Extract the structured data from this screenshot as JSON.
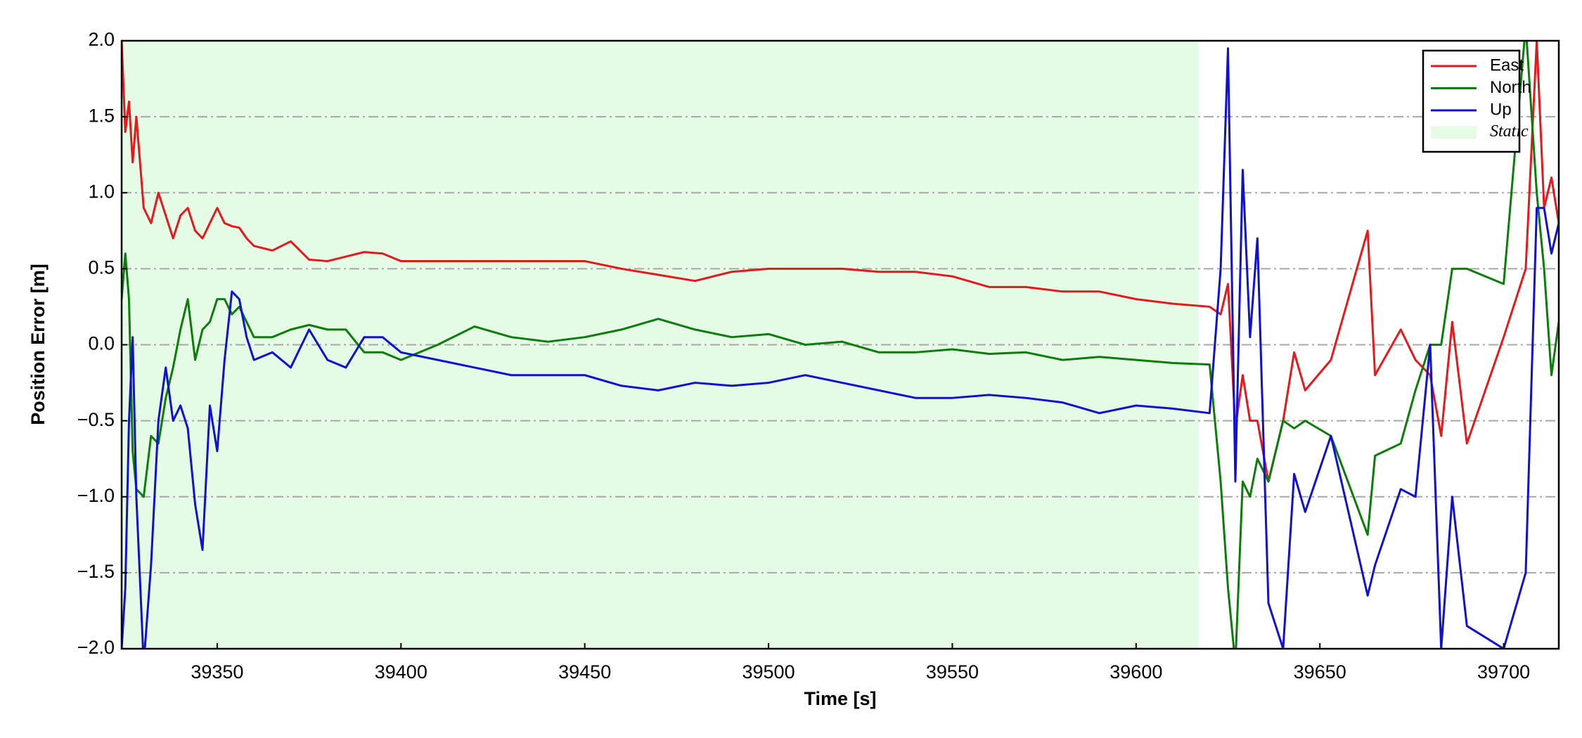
{
  "chart_data": {
    "type": "line",
    "xlabel": "Time [s]",
    "ylabel": "Position Error [m]",
    "x": [
      39324,
      39325,
      39326,
      39327,
      39328,
      39330,
      39332,
      39334,
      39336,
      39338,
      39340,
      39342,
      39344,
      39346,
      39348,
      39350,
      39352,
      39354,
      39356,
      39358,
      39360,
      39365,
      39370,
      39375,
      39380,
      39385,
      39390,
      39395,
      39400,
      39410,
      39420,
      39430,
      39440,
      39450,
      39460,
      39470,
      39480,
      39490,
      39500,
      39510,
      39520,
      39530,
      39540,
      39550,
      39560,
      39570,
      39580,
      39590,
      39600,
      39610,
      39620,
      39623,
      39625,
      39627,
      39629,
      39631,
      39633,
      39636,
      39640,
      39643,
      39646,
      39653,
      39663,
      39665,
      39672,
      39676,
      39680,
      39683,
      39686,
      39690,
      39700,
      39706,
      39709,
      39711,
      39713,
      39715
    ],
    "series": [
      {
        "name": "East",
        "color": "#e31a1c",
        "values": [
          2.0,
          1.4,
          1.6,
          1.2,
          1.5,
          0.9,
          0.8,
          1.0,
          0.85,
          0.7,
          0.85,
          0.9,
          0.75,
          0.7,
          0.8,
          0.9,
          0.8,
          0.78,
          0.77,
          0.7,
          0.65,
          0.62,
          0.68,
          0.56,
          0.55,
          0.58,
          0.61,
          0.6,
          0.55,
          0.55,
          0.55,
          0.55,
          0.55,
          0.55,
          0.5,
          0.46,
          0.42,
          0.48,
          0.5,
          0.5,
          0.5,
          0.48,
          0.48,
          0.45,
          0.38,
          0.38,
          0.35,
          0.35,
          0.3,
          0.27,
          0.25,
          0.2,
          0.4,
          -0.55,
          -0.2,
          -0.5,
          -0.5,
          -0.9,
          -0.5,
          -0.05,
          -0.3,
          -0.1,
          0.75,
          -0.2,
          0.1,
          -0.1,
          -0.2,
          -0.6,
          0.15,
          -0.65,
          0.05,
          0.5,
          2.0,
          0.9,
          1.1,
          0.8
        ]
      },
      {
        "name": "North",
        "color": "#0a7d0a",
        "values": [
          0.3,
          0.6,
          0.3,
          -0.7,
          -0.95,
          -1.0,
          -0.6,
          -0.65,
          -0.35,
          -0.15,
          0.1,
          0.3,
          -0.1,
          0.1,
          0.15,
          0.3,
          0.3,
          0.2,
          0.25,
          0.15,
          0.05,
          0.05,
          0.1,
          0.13,
          0.1,
          0.1,
          -0.05,
          -0.05,
          -0.1,
          0.0,
          0.12,
          0.05,
          0.02,
          0.05,
          0.1,
          0.17,
          0.1,
          0.05,
          0.07,
          0.0,
          0.02,
          -0.05,
          -0.05,
          -0.03,
          -0.06,
          -0.05,
          -0.1,
          -0.08,
          -0.1,
          -0.12,
          -0.13,
          -0.9,
          -1.6,
          -2.1,
          -0.9,
          -1.0,
          -0.75,
          -0.9,
          -0.5,
          -0.55,
          -0.5,
          -0.6,
          -1.25,
          -0.73,
          -0.65,
          -0.3,
          0.0,
          0.0,
          0.5,
          0.5,
          0.4,
          2.1,
          1.0,
          0.5,
          -0.2,
          0.15
        ]
      },
      {
        "name": "Up",
        "color": "#1010d0",
        "values": [
          -2.0,
          -1.6,
          -0.5,
          0.05,
          -1.0,
          -2.1,
          -1.45,
          -0.5,
          -0.15,
          -0.5,
          -0.4,
          -0.55,
          -1.05,
          -1.35,
          -0.4,
          -0.7,
          -0.1,
          0.35,
          0.3,
          0.05,
          -0.1,
          -0.05,
          -0.15,
          0.1,
          -0.1,
          -0.15,
          0.05,
          0.05,
          -0.05,
          -0.1,
          -0.15,
          -0.2,
          -0.2,
          -0.2,
          -0.27,
          -0.3,
          -0.25,
          -0.27,
          -0.25,
          -0.2,
          -0.25,
          -0.3,
          -0.35,
          -0.35,
          -0.33,
          -0.35,
          -0.38,
          -0.45,
          -0.4,
          -0.42,
          -0.45,
          0.5,
          1.95,
          -0.9,
          1.15,
          0.05,
          0.7,
          -1.7,
          -2.0,
          -0.85,
          -1.1,
          -0.6,
          -1.65,
          -1.45,
          -0.95,
          -1.0,
          0.0,
          -2.0,
          -1.0,
          -1.85,
          -2.0,
          -1.5,
          0.9,
          0.9,
          0.6,
          0.8
        ]
      }
    ],
    "shaded_region": {
      "label": "Static",
      "x": [
        39324,
        39617
      ],
      "color": "#e6fbe6"
    },
    "xlim": [
      39324,
      39715
    ],
    "xticks": [
      39350,
      39400,
      39450,
      39500,
      39550,
      39600,
      39650,
      39700
    ],
    "ylim": [
      -2,
      2
    ],
    "yticks": [
      {
        "value": -2,
        "label": "−2.0"
      },
      {
        "value": -1.5,
        "label": "−1.5"
      },
      {
        "value": -1,
        "label": "−1.0"
      },
      {
        "value": -0.5,
        "label": "−0.5"
      },
      {
        "value": 0,
        "label": "0.0"
      },
      {
        "value": 0.5,
        "label": "0.5"
      },
      {
        "value": 1,
        "label": "1.0"
      },
      {
        "value": 1.5,
        "label": "1.5"
      },
      {
        "value": 2,
        "label": "2.0"
      }
    ],
    "grid": true,
    "legend": "upper right"
  }
}
